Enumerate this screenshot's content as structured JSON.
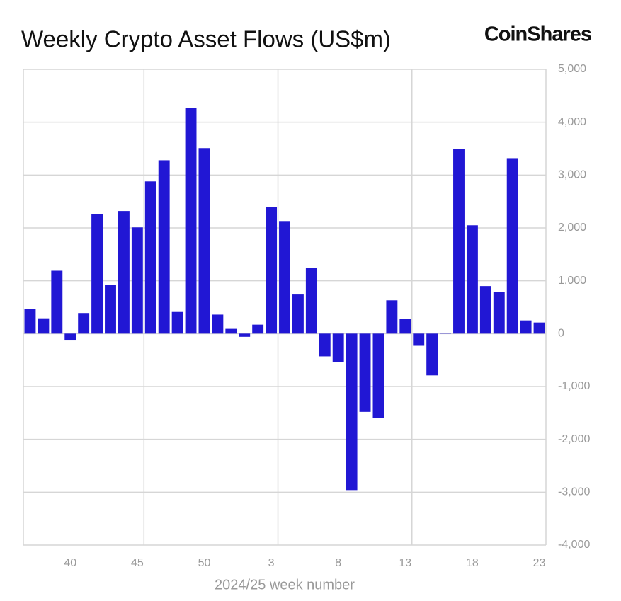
{
  "chart_data": {
    "type": "bar",
    "title": "Weekly Crypto Asset Flows (US$m)",
    "brand": "CoinShares",
    "x_label": "2024/25 week number",
    "color": "#2117d4",
    "categories": [
      null,
      null,
      null,
      "40",
      null,
      null,
      null,
      null,
      "45",
      null,
      null,
      null,
      null,
      "50",
      null,
      null,
      null,
      null,
      "3",
      null,
      null,
      null,
      null,
      "8",
      null,
      null,
      null,
      null,
      "13",
      null,
      null,
      null,
      null,
      "18",
      null,
      null,
      null,
      null,
      "23"
    ],
    "values": [
      470,
      290,
      1190,
      -130,
      390,
      2260,
      920,
      2320,
      2010,
      2880,
      3280,
      410,
      4270,
      3510,
      360,
      90,
      -60,
      170,
      2400,
      2130,
      740,
      1250,
      -430,
      -540,
      -2960,
      -1480,
      -1590,
      630,
      280,
      -230,
      -790,
      10,
      3500,
      2050,
      900,
      790,
      3320,
      250,
      210
    ],
    "ylim": [
      -4000,
      5000
    ],
    "yticks": [
      {
        "value": -4000,
        "label": "-4,000"
      },
      {
        "value": -3000,
        "label": "-3,000"
      },
      {
        "value": -2000,
        "label": "-2,000"
      },
      {
        "value": -1000,
        "label": "-1,000"
      },
      0,
      {
        "value": 1000,
        "label": "1,000"
      },
      {
        "value": 2000,
        "label": "2,000"
      },
      {
        "value": 3000,
        "label": "3,000"
      },
      {
        "value": 4000,
        "label": "4,000"
      },
      {
        "value": 5000,
        "label": "5,000"
      }
    ],
    "grid": true
  }
}
